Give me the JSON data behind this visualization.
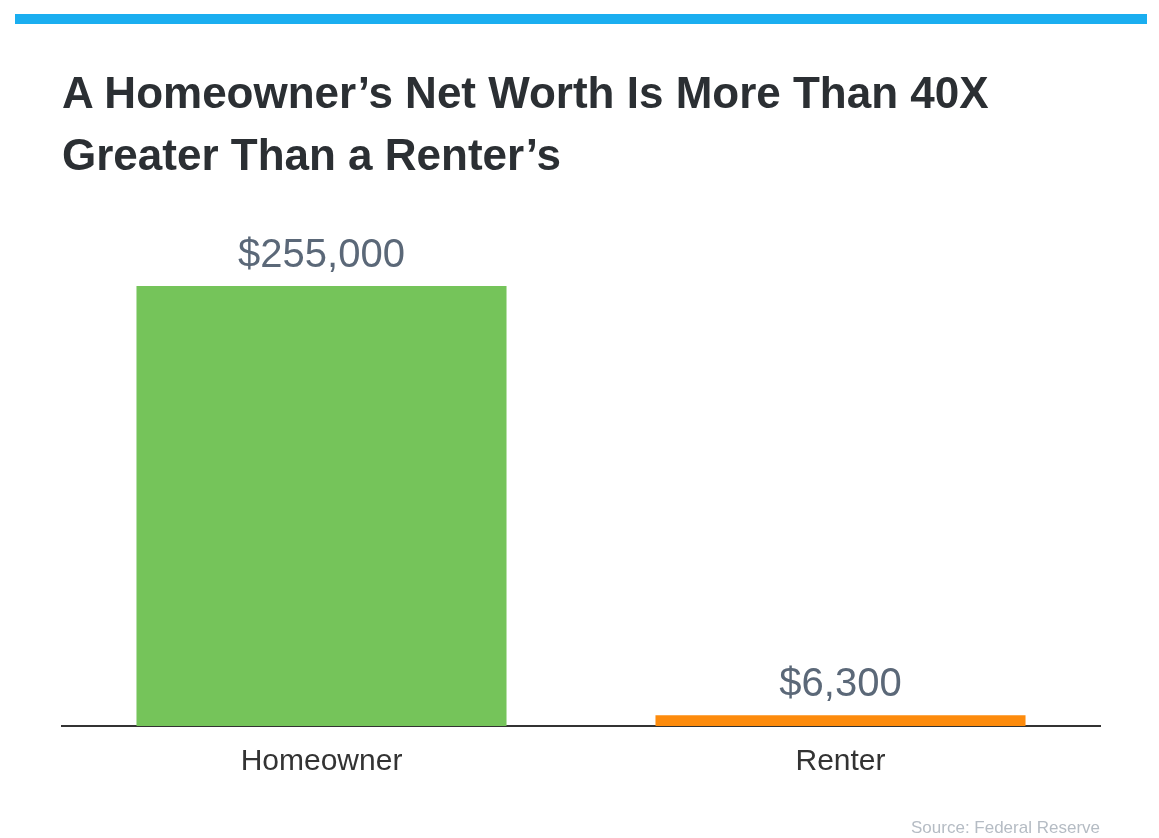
{
  "chart_data": {
    "type": "bar",
    "title": "A Homeowner’s Net Worth Is More Than 40X Greater Than a Renter’s",
    "categories": [
      "Homeowner",
      "Renter"
    ],
    "values": [
      255000,
      6300
    ],
    "colors": [
      "#75c45a",
      "#fd8b0c"
    ],
    "value_labels": [
      "$255,000",
      "$6,300"
    ],
    "annotations": [
      "Source: Federal Reserve"
    ],
    "grid": false,
    "legend": false
  }
}
